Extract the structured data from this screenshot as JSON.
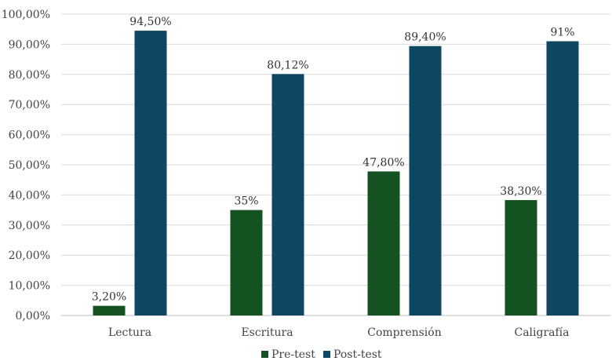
{
  "chart_data": {
    "type": "bar",
    "categories": [
      "Lectura",
      "Escritura",
      "Comprensión",
      "Caligrafía"
    ],
    "series": [
      {
        "name": "Pre-test",
        "color": "#145222",
        "values": [
          3.2,
          35,
          47.8,
          38.3
        ],
        "labels": [
          "3,20%",
          "35%",
          "47,80%",
          "38,30%"
        ]
      },
      {
        "name": "Post-test",
        "color": "#0f4662",
        "values": [
          94.5,
          80.12,
          89.4,
          91
        ],
        "labels": [
          "94,50%",
          "80,12%",
          "89,40%",
          "91%"
        ]
      }
    ],
    "ylim": [
      0,
      100
    ],
    "yticks": [
      0,
      10,
      20,
      30,
      40,
      50,
      60,
      70,
      80,
      90,
      100
    ],
    "ytick_labels": [
      "0,00%",
      "10,00%",
      "20,00%",
      "30,00%",
      "40,00%",
      "50,00%",
      "60,00%",
      "70,00%",
      "80,00%",
      "90,00%",
      "100,00%"
    ],
    "grid": true,
    "legend_position": "bottom",
    "title": "",
    "xlabel": "",
    "ylabel": ""
  }
}
